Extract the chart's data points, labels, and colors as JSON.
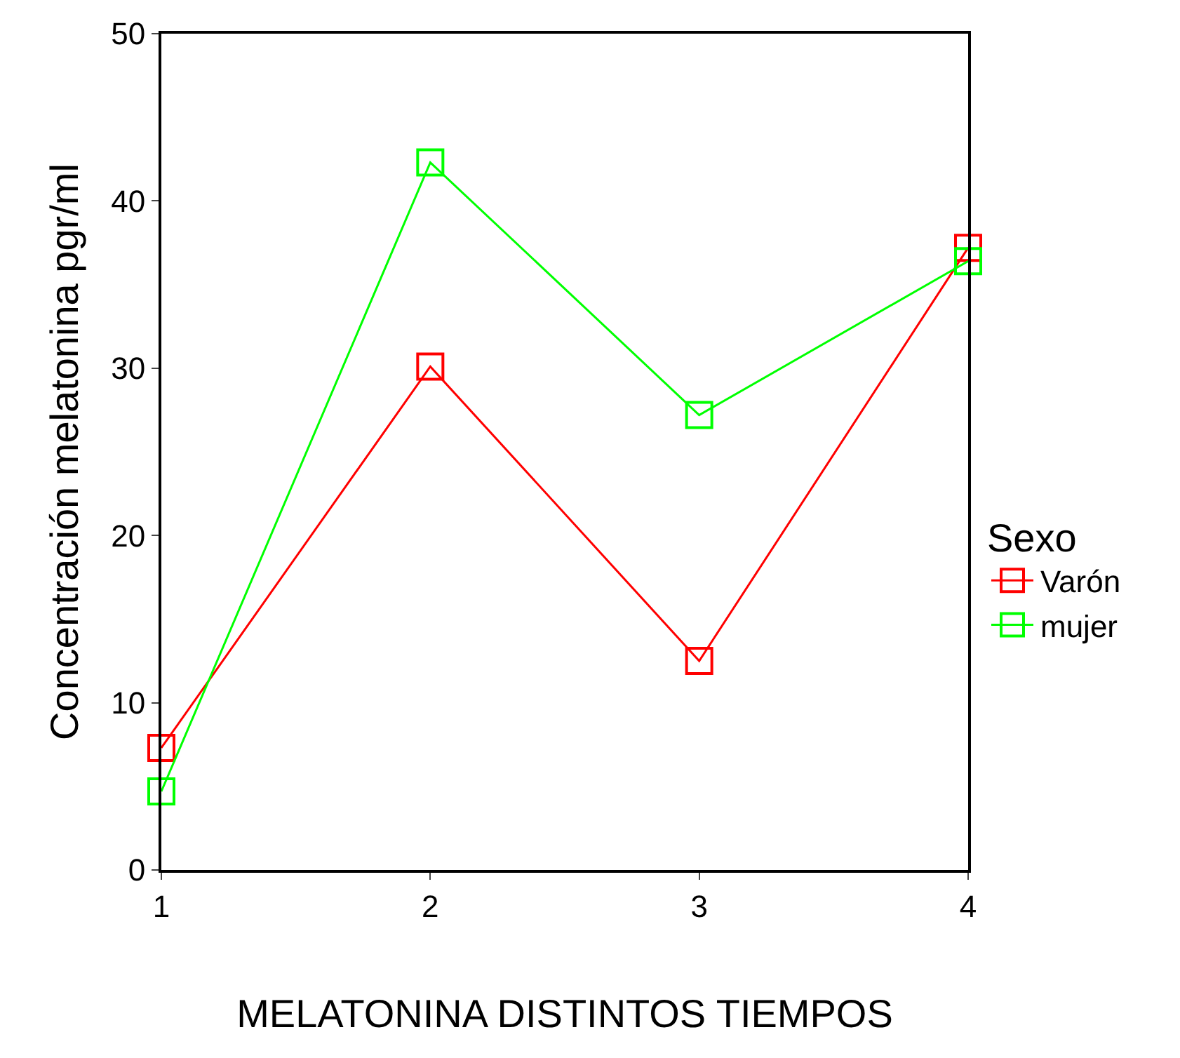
{
  "chart_data": {
    "type": "line",
    "xlabel": "MELATONINA DISTINTOS TIEMPOS",
    "ylabel": "Concentración melatonina pgr/ml",
    "legend_title": "Sexo",
    "x": [
      1,
      2,
      3,
      4
    ],
    "series": [
      {
        "name": "Varón",
        "color": "#ff0000",
        "values": [
          7.3,
          30.1,
          12.5,
          37.2
        ]
      },
      {
        "name": "mujer",
        "color": "#00ff00",
        "values": [
          4.7,
          42.3,
          27.2,
          36.4
        ]
      }
    ],
    "xlim": [
      1,
      4
    ],
    "xticks": [
      1,
      2,
      3,
      4
    ],
    "ylim": [
      0,
      50
    ],
    "yticks": [
      0,
      10,
      20,
      30,
      40,
      50
    ],
    "legend": "right",
    "marker": "square",
    "line_style": "solid"
  }
}
